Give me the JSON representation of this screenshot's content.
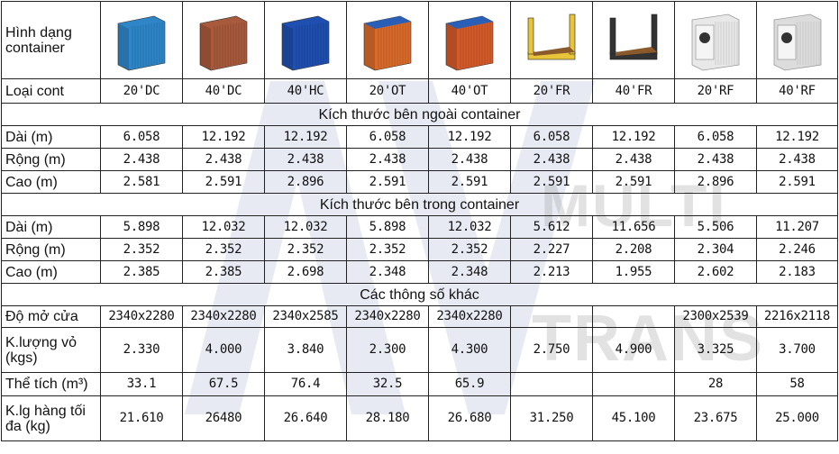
{
  "header": {
    "shape_label": "Hình dạng container",
    "type_label": "Loại cont"
  },
  "containers": [
    {
      "type": "20'DC",
      "color": "#2e86c8",
      "icon": "blue-dry-container-icon"
    },
    {
      "type": "40'DC",
      "color": "#a85a3c",
      "icon": "brown-dry-container-icon"
    },
    {
      "type": "40'HC",
      "color": "#1f4fb0",
      "icon": "blue-high-cube-container-icon"
    },
    {
      "type": "20'OT",
      "color": "#d86a2a",
      "icon": "orange-open-top-container-icon"
    },
    {
      "type": "40'OT",
      "color": "#d45a2a",
      "icon": "orange-open-top-container-icon"
    },
    {
      "type": "20'FR",
      "color": "#e8c43a",
      "icon": "yellow-flat-rack-container-icon"
    },
    {
      "type": "40'FR",
      "color": "#333333",
      "icon": "black-flat-rack-container-icon"
    },
    {
      "type": "20'RF",
      "color": "#e8e8e8",
      "icon": "white-reefer-container-icon"
    },
    {
      "type": "40'RF",
      "color": "#dcdcdc",
      "icon": "white-reefer-container-icon"
    }
  ],
  "sections": {
    "outer": "Kích thước bên ngoài container",
    "inner": "Kích thước bên trong container",
    "other": "Các thông số khác"
  },
  "outer_rows": [
    {
      "label": "Dài (m)",
      "values": [
        "6.058",
        "12.192",
        "12.192",
        "6.058",
        "12.192",
        "6.058",
        "12.192",
        "6.058",
        "12.192"
      ]
    },
    {
      "label": "Rộng (m)",
      "values": [
        "2.438",
        "2.438",
        "2.438",
        "2.438",
        "2.438",
        "2.438",
        "2.438",
        "2.438",
        "2.438"
      ]
    },
    {
      "label": "Cao (m)",
      "values": [
        "2.581",
        "2.591",
        "2.896",
        "2.591",
        "2.591",
        "2.591",
        "2.591",
        "2.896",
        "2.591"
      ]
    }
  ],
  "inner_rows": [
    {
      "label": "Dài (m)",
      "values": [
        "5.898",
        "12.032",
        "12.032",
        "5.898",
        "12.032",
        "5.612",
        "11.656",
        "5.506",
        "11.207"
      ]
    },
    {
      "label": "Rộng (m)",
      "values": [
        "2.352",
        "2.352",
        "2.352",
        "2.352",
        "2.352",
        "2.227",
        "2.208",
        "2.304",
        "2.246"
      ]
    },
    {
      "label": "Cao (m)",
      "values": [
        "2.385",
        "2.385",
        "2.698",
        "2.348",
        "2.348",
        "2.213",
        "1.955",
        "2.602",
        "2.183"
      ]
    }
  ],
  "other_rows": [
    {
      "label": "Độ mở cửa",
      "values": [
        "2340x2280",
        "2340x2280",
        "2340x2585",
        "2340x2280",
        "2340x2280",
        "",
        "",
        "2300x2539",
        "2216x2118"
      ]
    },
    {
      "label": "K.lượng vỏ (kgs)",
      "values": [
        "2.330",
        "4.000",
        "3.840",
        "2.300",
        "4.300",
        "2.750",
        "4.900",
        "3.325",
        "3.700"
      ]
    },
    {
      "label": "Thể tích (m³)",
      "values": [
        "33.1",
        "67.5",
        "76.4",
        "32.5",
        "65.9",
        "",
        "",
        "28",
        "58"
      ]
    },
    {
      "label": "K.lg hàng tối đa (kg)",
      "values": [
        "21.610",
        "26480",
        "26.640",
        "28.180",
        "26.680",
        "31.250",
        "45.100",
        "23.675",
        "25.000"
      ]
    }
  ],
  "watermark": {
    "line1": "MULTI",
    "line2": "TRANS"
  }
}
